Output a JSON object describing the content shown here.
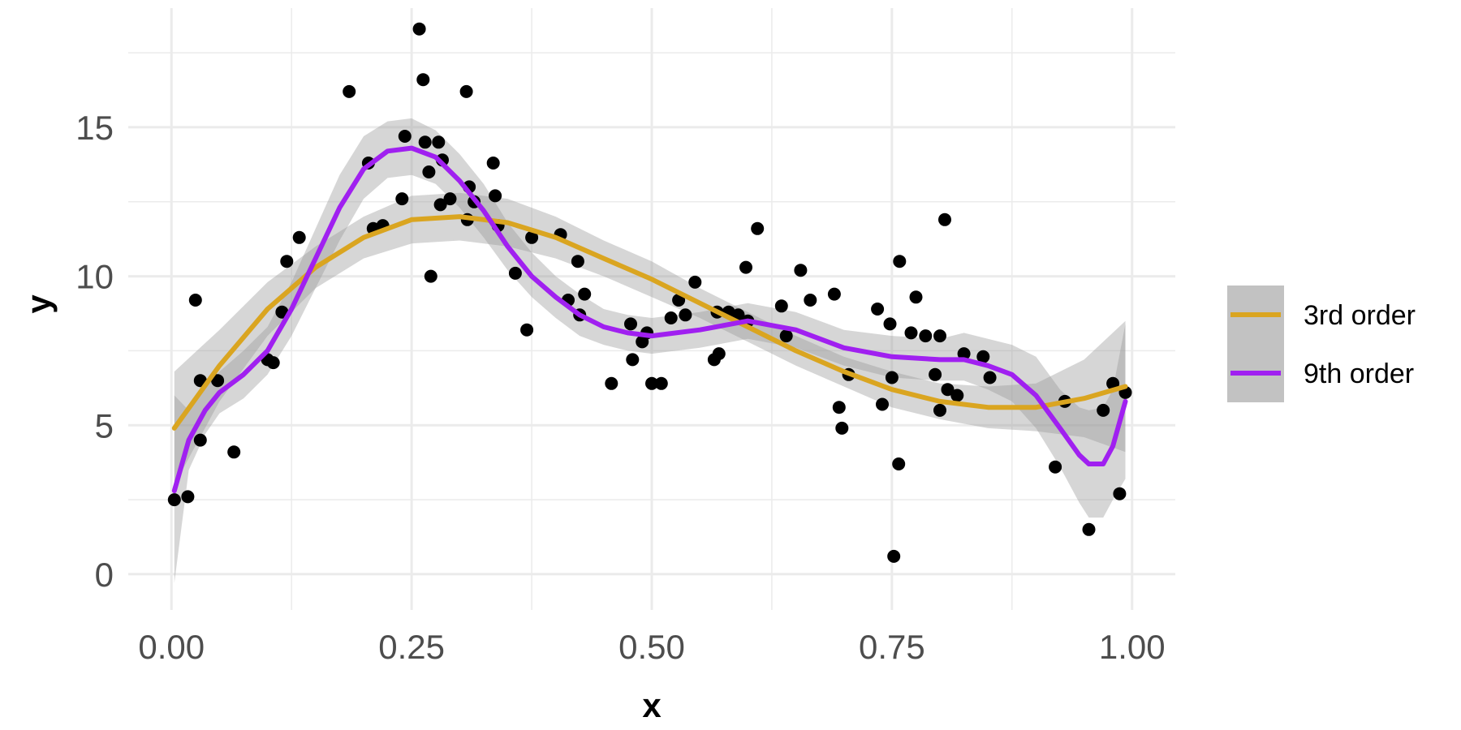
{
  "chart_data": {
    "type": "scatter",
    "xlabel": "x",
    "ylabel": "y",
    "xlim": [
      -0.045,
      1.045
    ],
    "ylim": [
      -1.2,
      19.0
    ],
    "x_ticks": [
      0.0,
      0.25,
      0.5,
      0.75,
      1.0
    ],
    "x_tick_labels": [
      "0.00",
      "0.25",
      "0.50",
      "0.75",
      "1.00"
    ],
    "y_ticks": [
      0,
      5,
      10,
      15
    ],
    "y_tick_labels": [
      "0",
      "5",
      "10",
      "15"
    ],
    "grid": true,
    "legend_position": "right",
    "points": [
      [
        0.003,
        2.5
      ],
      [
        0.017,
        2.6
      ],
      [
        0.025,
        9.2
      ],
      [
        0.03,
        6.5
      ],
      [
        0.03,
        4.5
      ],
      [
        0.048,
        6.5
      ],
      [
        0.065,
        4.1
      ],
      [
        0.1,
        7.2
      ],
      [
        0.106,
        7.1
      ],
      [
        0.115,
        8.8
      ],
      [
        0.12,
        10.5
      ],
      [
        0.133,
        11.3
      ],
      [
        0.185,
        16.2
      ],
      [
        0.205,
        13.8
      ],
      [
        0.21,
        11.6
      ],
      [
        0.22,
        11.7
      ],
      [
        0.24,
        12.6
      ],
      [
        0.243,
        14.7
      ],
      [
        0.258,
        18.3
      ],
      [
        0.262,
        16.6
      ],
      [
        0.264,
        14.5
      ],
      [
        0.268,
        13.5
      ],
      [
        0.27,
        10.0
      ],
      [
        0.278,
        14.5
      ],
      [
        0.28,
        12.4
      ],
      [
        0.282,
        13.9
      ],
      [
        0.29,
        12.6
      ],
      [
        0.307,
        16.2
      ],
      [
        0.308,
        11.9
      ],
      [
        0.31,
        13.0
      ],
      [
        0.315,
        12.5
      ],
      [
        0.335,
        13.8
      ],
      [
        0.337,
        12.7
      ],
      [
        0.34,
        11.7
      ],
      [
        0.358,
        10.1
      ],
      [
        0.37,
        8.2
      ],
      [
        0.375,
        11.3
      ],
      [
        0.405,
        11.4
      ],
      [
        0.413,
        9.2
      ],
      [
        0.423,
        10.5
      ],
      [
        0.425,
        8.7
      ],
      [
        0.43,
        9.4
      ],
      [
        0.458,
        6.4
      ],
      [
        0.478,
        8.4
      ],
      [
        0.48,
        7.2
      ],
      [
        0.49,
        7.8
      ],
      [
        0.495,
        8.1
      ],
      [
        0.5,
        6.4
      ],
      [
        0.51,
        6.4
      ],
      [
        0.52,
        8.6
      ],
      [
        0.528,
        9.2
      ],
      [
        0.535,
        8.7
      ],
      [
        0.545,
        9.8
      ],
      [
        0.565,
        7.2
      ],
      [
        0.568,
        8.8
      ],
      [
        0.57,
        7.4
      ],
      [
        0.58,
        8.8
      ],
      [
        0.59,
        8.7
      ],
      [
        0.598,
        10.3
      ],
      [
        0.6,
        8.5
      ],
      [
        0.61,
        11.6
      ],
      [
        0.635,
        9.0
      ],
      [
        0.64,
        8.0
      ],
      [
        0.655,
        10.2
      ],
      [
        0.665,
        9.2
      ],
      [
        0.69,
        9.4
      ],
      [
        0.695,
        5.6
      ],
      [
        0.698,
        4.9
      ],
      [
        0.705,
        6.7
      ],
      [
        0.735,
        8.9
      ],
      [
        0.74,
        5.7
      ],
      [
        0.748,
        8.4
      ],
      [
        0.75,
        6.6
      ],
      [
        0.752,
        0.6
      ],
      [
        0.757,
        3.7
      ],
      [
        0.758,
        10.5
      ],
      [
        0.77,
        8.1
      ],
      [
        0.775,
        9.3
      ],
      [
        0.785,
        8.0
      ],
      [
        0.795,
        6.7
      ],
      [
        0.8,
        5.5
      ],
      [
        0.8,
        8.0
      ],
      [
        0.805,
        11.9
      ],
      [
        0.808,
        6.2
      ],
      [
        0.818,
        6.0
      ],
      [
        0.825,
        7.4
      ],
      [
        0.845,
        7.3
      ],
      [
        0.852,
        6.6
      ],
      [
        0.92,
        3.6
      ],
      [
        0.93,
        5.8
      ],
      [
        0.955,
        1.5
      ],
      [
        0.97,
        5.5
      ],
      [
        0.98,
        6.4
      ],
      [
        0.987,
        2.7
      ],
      [
        0.993,
        6.1
      ]
    ],
    "series": [
      {
        "name": "3rd order",
        "color": "#daa520",
        "x": [
          0.003,
          0.05,
          0.1,
          0.15,
          0.2,
          0.25,
          0.3,
          0.35,
          0.4,
          0.45,
          0.5,
          0.55,
          0.6,
          0.65,
          0.7,
          0.75,
          0.8,
          0.85,
          0.9,
          0.95,
          0.993
        ],
        "y": [
          4.9,
          7.0,
          8.9,
          10.3,
          11.3,
          11.9,
          12.0,
          11.8,
          11.3,
          10.6,
          9.9,
          9.1,
          8.3,
          7.5,
          6.8,
          6.2,
          5.8,
          5.6,
          5.6,
          5.9,
          6.3
        ],
        "lower": [
          3.0,
          5.8,
          8.0,
          9.6,
          10.6,
          11.1,
          11.2,
          11.0,
          10.6,
          10.0,
          9.3,
          8.6,
          7.8,
          7.0,
          6.3,
          5.6,
          5.2,
          4.9,
          4.8,
          4.6,
          4.1
        ],
        "upper": [
          6.8,
          8.2,
          9.8,
          11.0,
          12.0,
          12.7,
          12.8,
          12.6,
          12.0,
          11.2,
          10.5,
          9.6,
          8.8,
          8.0,
          7.3,
          6.8,
          6.4,
          6.3,
          6.4,
          7.2,
          8.5
        ]
      },
      {
        "name": "9th order",
        "color": "#a020f0",
        "x": [
          0.003,
          0.018,
          0.035,
          0.05,
          0.075,
          0.1,
          0.125,
          0.15,
          0.175,
          0.2,
          0.225,
          0.25,
          0.275,
          0.3,
          0.325,
          0.35,
          0.375,
          0.4,
          0.425,
          0.45,
          0.475,
          0.5,
          0.55,
          0.6,
          0.65,
          0.7,
          0.75,
          0.8,
          0.825,
          0.85,
          0.875,
          0.9,
          0.925,
          0.945,
          0.955,
          0.97,
          0.98,
          0.993
        ],
        "y": [
          2.8,
          4.5,
          5.5,
          6.1,
          6.7,
          7.5,
          8.9,
          10.6,
          12.3,
          13.6,
          14.2,
          14.3,
          14.0,
          13.2,
          12.2,
          11.0,
          10.0,
          9.3,
          8.7,
          8.3,
          8.1,
          8.0,
          8.2,
          8.5,
          8.2,
          7.6,
          7.3,
          7.2,
          7.2,
          7.0,
          6.7,
          6.0,
          4.9,
          4.0,
          3.7,
          3.7,
          4.3,
          5.8
        ],
        "lower": [
          -0.3,
          3.5,
          4.7,
          5.4,
          5.9,
          6.7,
          8.0,
          9.6,
          11.2,
          12.6,
          13.3,
          13.4,
          13.1,
          12.3,
          11.3,
          10.2,
          9.3,
          8.6,
          8.0,
          7.7,
          7.5,
          7.4,
          7.6,
          7.9,
          7.6,
          7.0,
          6.6,
          6.5,
          6.5,
          6.2,
          5.8,
          4.9,
          3.6,
          2.4,
          1.9,
          1.9,
          2.5,
          3.2
        ],
        "upper": [
          6.0,
          5.5,
          6.3,
          6.8,
          7.5,
          8.3,
          9.8,
          11.6,
          13.4,
          14.7,
          15.2,
          15.3,
          14.9,
          14.1,
          13.1,
          11.8,
          10.8,
          10.0,
          9.4,
          8.9,
          8.7,
          8.6,
          8.8,
          9.1,
          8.8,
          8.2,
          8.0,
          7.9,
          8.1,
          7.9,
          7.7,
          7.3,
          6.2,
          5.6,
          5.5,
          5.6,
          6.2,
          8.4
        ]
      }
    ]
  }
}
